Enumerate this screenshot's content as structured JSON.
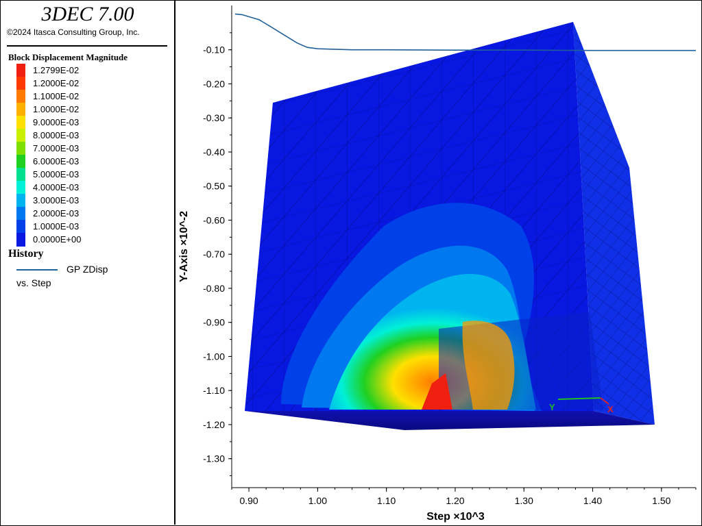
{
  "app": {
    "title": "3DEC 7.00",
    "copyright": "©2024 Itasca Consulting Group, Inc."
  },
  "legend": {
    "title": "Block  Displacement Magnitude",
    "items": [
      {
        "label": "1.2799E-02",
        "color": "#f02010"
      },
      {
        "label": "1.2000E-02",
        "color": "#ff3a00"
      },
      {
        "label": "1.1000E-02",
        "color": "#ff7a00"
      },
      {
        "label": "1.0000E-02",
        "color": "#ffb000"
      },
      {
        "label": "9.0000E-03",
        "color": "#ffe000"
      },
      {
        "label": "8.0000E-03",
        "color": "#c8f000"
      },
      {
        "label": "7.0000E-03",
        "color": "#7ee000"
      },
      {
        "label": "6.0000E-03",
        "color": "#20d020"
      },
      {
        "label": "5.0000E-03",
        "color": "#00e090"
      },
      {
        "label": "4.0000E-03",
        "color": "#00f0d8"
      },
      {
        "label": "3.0000E-03",
        "color": "#00b4f0"
      },
      {
        "label": "2.0000E-03",
        "color": "#0078f0"
      },
      {
        "label": "1.0000E-03",
        "color": "#0040e8"
      },
      {
        "label": "0.0000E+00",
        "color": "#0818e0"
      }
    ]
  },
  "history": {
    "title": "History",
    "series_name": "GP ZDisp",
    "vs_label": "vs. Step",
    "line_color": "#1f5f9a"
  },
  "chart_data": {
    "type": "line",
    "xlabel": "Step ×10^3",
    "ylabel": "Y-Axis ×10^-2",
    "xlim": [
      0.875,
      1.55
    ],
    "ylim": [
      -1.385,
      0.03
    ],
    "xticks": [
      0.9,
      1.0,
      1.1,
      1.2,
      1.3,
      1.4,
      1.5
    ],
    "xtick_labels": [
      "0.90",
      "1.00",
      "1.10",
      "1.20",
      "1.30",
      "1.40",
      "1.50"
    ],
    "yticks": [
      -0.1,
      -0.2,
      -0.3,
      -0.4,
      -0.5,
      -0.6,
      -0.7,
      -0.8,
      -0.9,
      -1.0,
      -1.1,
      -1.2,
      -1.3
    ],
    "ytick_labels": [
      "-0.10",
      "-0.20",
      "-0.30",
      "-0.40",
      "-0.50",
      "-0.60",
      "-0.70",
      "-0.80",
      "-0.90",
      "-1.00",
      "-1.10",
      "-1.20",
      "-1.30"
    ],
    "series": [
      {
        "name": "GP ZDisp",
        "x": [
          0.88,
          0.89,
          0.9,
          0.915,
          0.93,
          0.95,
          0.97,
          0.985,
          1.0,
          1.05,
          1.1,
          1.2,
          1.3,
          1.4,
          1.5,
          1.55
        ],
        "y": [
          0.005,
          0.003,
          -0.003,
          -0.012,
          -0.03,
          -0.055,
          -0.08,
          -0.093,
          -0.097,
          -0.1,
          -0.1,
          -0.101,
          -0.101,
          -0.102,
          -0.102,
          -0.102
        ]
      }
    ]
  },
  "axis_glyph": {
    "y_label": "Y",
    "x_label": "X",
    "y_color": "#20c020",
    "x_color": "#e02020"
  }
}
